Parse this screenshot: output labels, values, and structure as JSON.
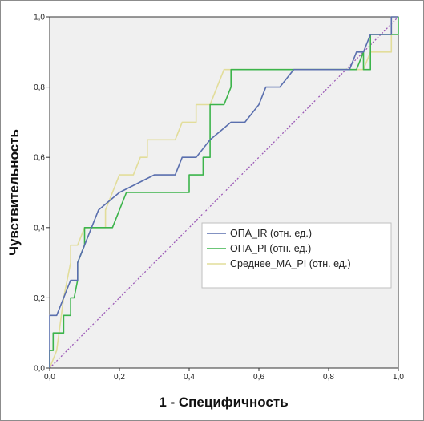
{
  "chart_data": {
    "type": "line",
    "title": "",
    "xlabel": "1 - Специфичность",
    "ylabel": "Чувствительность",
    "xlim": [
      0,
      1
    ],
    "ylim": [
      0,
      1
    ],
    "x_ticks": [
      "0,0",
      "0,2",
      "0,4",
      "0,6",
      "0,8",
      "1,0"
    ],
    "y_ticks": [
      "0,0",
      "0,2",
      "0,4",
      "0,6",
      "0,8",
      "1,0"
    ],
    "x_tick_values": [
      0,
      0.2,
      0.4,
      0.6,
      0.8,
      1.0
    ],
    "y_tick_values": [
      0,
      0.2,
      0.4,
      0.6,
      0.8,
      1.0
    ],
    "grid": false,
    "plot_background": "#f0f0f0",
    "legend_position": "center-right",
    "series": [
      {
        "name": "ОПА_IR (отн. ед.)",
        "color": "#5a6fae",
        "points": [
          [
            0,
            0
          ],
          [
            0,
            0.15
          ],
          [
            0.02,
            0.15
          ],
          [
            0.04,
            0.2
          ],
          [
            0.06,
            0.25
          ],
          [
            0.08,
            0.25
          ],
          [
            0.08,
            0.3
          ],
          [
            0.1,
            0.35
          ],
          [
            0.14,
            0.45
          ],
          [
            0.2,
            0.5
          ],
          [
            0.3,
            0.55
          ],
          [
            0.36,
            0.55
          ],
          [
            0.38,
            0.6
          ],
          [
            0.42,
            0.6
          ],
          [
            0.46,
            0.65
          ],
          [
            0.52,
            0.7
          ],
          [
            0.56,
            0.7
          ],
          [
            0.6,
            0.75
          ],
          [
            0.62,
            0.8
          ],
          [
            0.66,
            0.8
          ],
          [
            0.7,
            0.85
          ],
          [
            0.86,
            0.85
          ],
          [
            0.88,
            0.9
          ],
          [
            0.9,
            0.9
          ],
          [
            0.92,
            0.95
          ],
          [
            0.98,
            0.95
          ],
          [
            0.98,
            1.0
          ],
          [
            1.0,
            1.0
          ]
        ]
      },
      {
        "name": "ОПА_PI (отн. ед.)",
        "color": "#3cb44b",
        "points": [
          [
            0,
            0
          ],
          [
            0,
            0.05
          ],
          [
            0.01,
            0.05
          ],
          [
            0.01,
            0.1
          ],
          [
            0.04,
            0.1
          ],
          [
            0.04,
            0.15
          ],
          [
            0.06,
            0.15
          ],
          [
            0.06,
            0.2
          ],
          [
            0.07,
            0.2
          ],
          [
            0.08,
            0.25
          ],
          [
            0.08,
            0.3
          ],
          [
            0.1,
            0.35
          ],
          [
            0.1,
            0.4
          ],
          [
            0.18,
            0.4
          ],
          [
            0.2,
            0.45
          ],
          [
            0.22,
            0.5
          ],
          [
            0.4,
            0.5
          ],
          [
            0.4,
            0.55
          ],
          [
            0.44,
            0.55
          ],
          [
            0.44,
            0.6
          ],
          [
            0.46,
            0.6
          ],
          [
            0.46,
            0.75
          ],
          [
            0.5,
            0.75
          ],
          [
            0.52,
            0.8
          ],
          [
            0.52,
            0.85
          ],
          [
            0.84,
            0.85
          ],
          [
            0.88,
            0.85
          ],
          [
            0.9,
            0.9
          ],
          [
            0.9,
            0.85
          ],
          [
            0.92,
            0.85
          ],
          [
            0.92,
            0.95
          ],
          [
            1.0,
            0.95
          ],
          [
            1.0,
            1.0
          ]
        ]
      },
      {
        "name": "Среднее_MA_PI (отн. ед.)",
        "color": "#e2dd9a",
        "points": [
          [
            0,
            0
          ],
          [
            0.02,
            0.05
          ],
          [
            0.04,
            0.2
          ],
          [
            0.06,
            0.3
          ],
          [
            0.06,
            0.35
          ],
          [
            0.08,
            0.35
          ],
          [
            0.1,
            0.4
          ],
          [
            0.16,
            0.4
          ],
          [
            0.16,
            0.45
          ],
          [
            0.18,
            0.5
          ],
          [
            0.2,
            0.55
          ],
          [
            0.24,
            0.55
          ],
          [
            0.26,
            0.6
          ],
          [
            0.28,
            0.6
          ],
          [
            0.28,
            0.65
          ],
          [
            0.36,
            0.65
          ],
          [
            0.38,
            0.7
          ],
          [
            0.42,
            0.7
          ],
          [
            0.42,
            0.75
          ],
          [
            0.46,
            0.75
          ],
          [
            0.48,
            0.8
          ],
          [
            0.5,
            0.85
          ],
          [
            0.56,
            0.85
          ],
          [
            0.9,
            0.85
          ],
          [
            0.92,
            0.9
          ],
          [
            0.98,
            0.9
          ],
          [
            0.98,
            1.0
          ],
          [
            1.0,
            1.0
          ]
        ]
      }
    ],
    "reference_line": {
      "color": "#9b59b6",
      "style": "dotted",
      "points": [
        [
          0,
          0
        ],
        [
          1,
          1
        ]
      ]
    }
  }
}
